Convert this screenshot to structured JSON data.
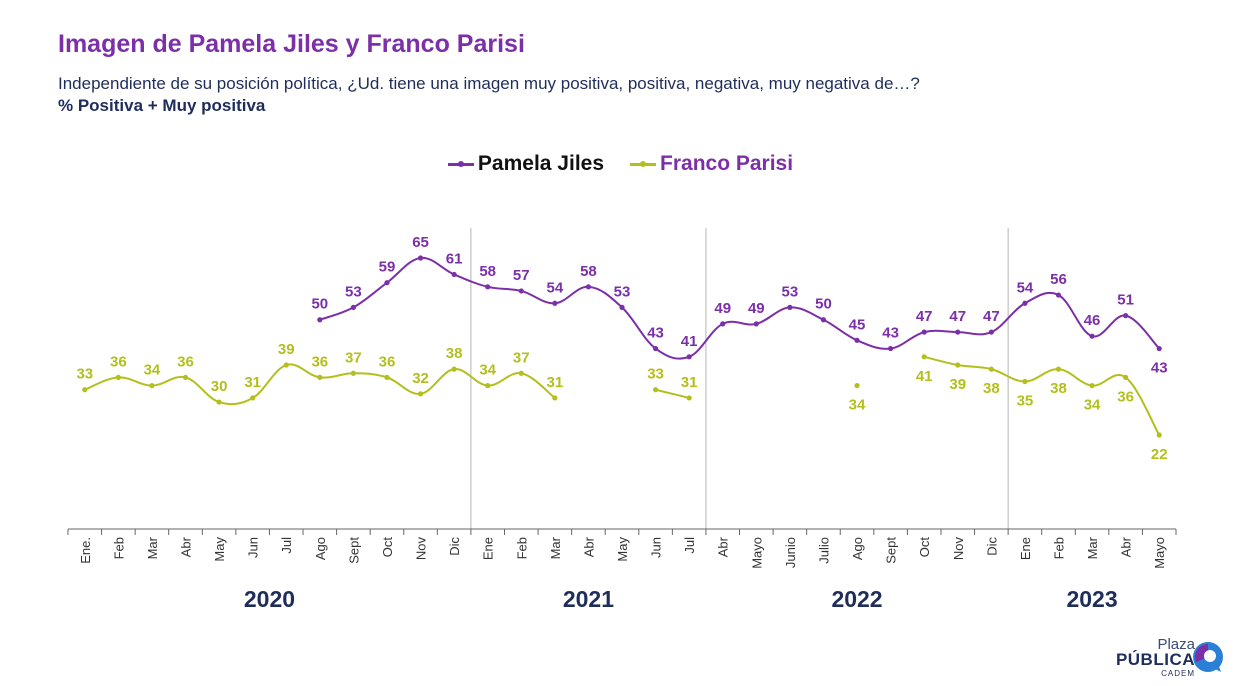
{
  "header": {
    "title": "Imagen de Pamela Jiles y Franco Parisi",
    "subtitle": "Independiente de su posición política, ¿Ud. tiene una imagen muy positiva, positiva, negativa, muy negativa de…?",
    "measure": "% Positiva + Muy positiva"
  },
  "logo": {
    "line1": "Plaza",
    "line2": "PÚBLICA",
    "line3": "CADEM"
  },
  "colors": {
    "jiles": "#7b2fa8",
    "parisi": "#b3bf1c",
    "axis": "#4a4a4a",
    "year": "#1f2d5a"
  },
  "chart_data": {
    "type": "line",
    "categories": [
      "Ene.",
      "Feb",
      "Mar",
      "Abr",
      "May",
      "Jun",
      "Jul",
      "Ago",
      "Sept",
      "Oct",
      "Nov",
      "Dic",
      "Ene",
      "Feb",
      "Mar",
      "Abr",
      "May",
      "Jun",
      "Jul",
      "Abr",
      "Mayo",
      "Junio",
      "Julio",
      "Ago",
      "Sept",
      "Oct",
      "Nov",
      "Dic",
      "Ene",
      "Feb",
      "Mar",
      "Abr",
      "Mayo"
    ],
    "year_groups": [
      {
        "label": "2020",
        "start": 0,
        "end": 11
      },
      {
        "label": "2021",
        "start": 12,
        "end": 18
      },
      {
        "label": "2022",
        "start": 19,
        "end": 27
      },
      {
        "label": "2023",
        "start": 28,
        "end": 32
      }
    ],
    "series": [
      {
        "name": "Pamela Jiles",
        "values": [
          null,
          null,
          null,
          null,
          null,
          null,
          null,
          50,
          53,
          59,
          65,
          61,
          58,
          57,
          54,
          58,
          53,
          43,
          41,
          49,
          49,
          53,
          50,
          45,
          43,
          47,
          47,
          47,
          54,
          56,
          46,
          51,
          43
        ]
      },
      {
        "name": "Franco Parisi",
        "values": [
          33,
          36,
          34,
          36,
          30,
          31,
          39,
          36,
          37,
          36,
          32,
          38,
          34,
          37,
          31,
          null,
          null,
          33,
          31,
          null,
          null,
          null,
          null,
          34,
          null,
          41,
          39,
          38,
          35,
          38,
          34,
          36,
          22
        ]
      }
    ],
    "ylim": [
      0,
      75
    ]
  }
}
